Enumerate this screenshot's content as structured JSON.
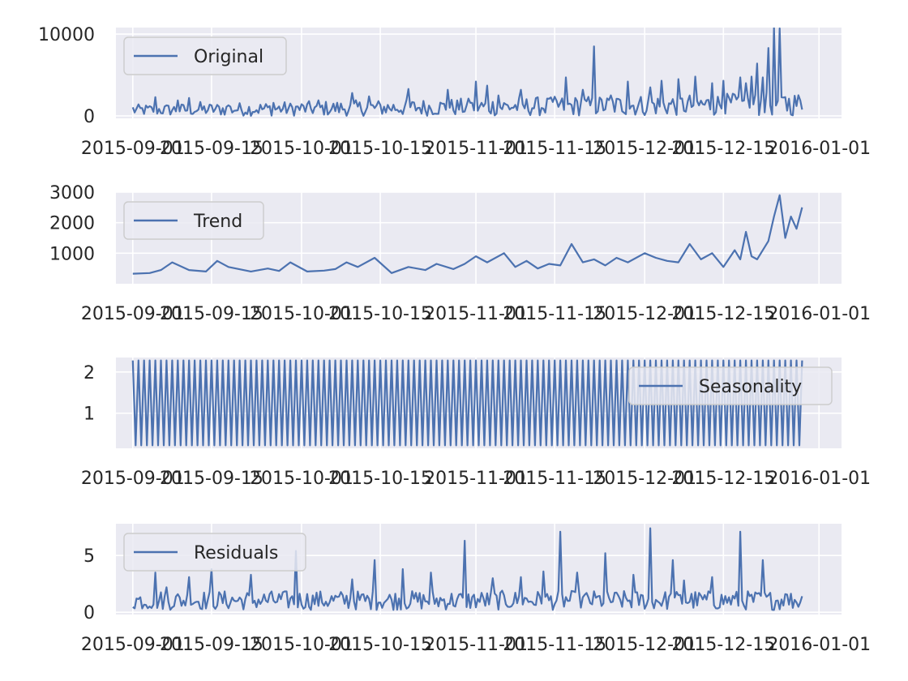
{
  "chart_data": [
    {
      "type": "line",
      "name": "original",
      "title": "",
      "xlabel": "",
      "ylabel": "",
      "xlim": [
        "2015-08-29",
        "2016-01-05"
      ],
      "ylim": [
        -300,
        10800
      ],
      "x_ticks": [
        "2015-09-01",
        "2015-09-15",
        "2015-10-01",
        "2015-10-15",
        "2015-11-01",
        "2015-11-15",
        "2015-12-01",
        "2015-12-15",
        "2016-01-01"
      ],
      "y_ticks": [
        0,
        10000
      ],
      "grid": true,
      "legend": "upper left",
      "x_start": "2015-09-01",
      "x_end": "2015-12-29",
      "series": [
        {
          "name": "Original",
          "color": "#4c72b0",
          "x": [
            "2015-09-01",
            "2015-09-05",
            "2015-09-09",
            "2015-09-11",
            "2015-09-13",
            "2015-09-18",
            "2015-09-26",
            "2015-09-29",
            "2015-10-04",
            "2015-10-10",
            "2015-10-13",
            "2015-10-20",
            "2015-10-27",
            "2015-10-31",
            "2015-11-01",
            "2015-11-03",
            "2015-11-05",
            "2015-11-09",
            "2015-11-14",
            "2015-11-17",
            "2015-11-20",
            "2015-11-22",
            "2015-11-25",
            "2015-11-28",
            "2015-12-02",
            "2015-12-04",
            "2015-12-07",
            "2015-12-10",
            "2015-12-13",
            "2015-12-15",
            "2015-12-17",
            "2015-12-18",
            "2015-12-19",
            "2015-12-20",
            "2015-12-21",
            "2015-12-22",
            "2015-12-23",
            "2015-12-24",
            "2015-12-25",
            "2015-12-26"
          ],
          "values": [
            1050,
            2300,
            1900,
            2200,
            1700,
            1300,
            1600,
            1500,
            1900,
            2800,
            2400,
            3300,
            3200,
            1600,
            4200,
            3700,
            2500,
            3200,
            2100,
            4700,
            3200,
            8500,
            2500,
            4200,
            3500,
            4300,
            4500,
            4800,
            4000,
            4300,
            2600,
            4700,
            4000,
            4800,
            6400,
            4700,
            8300,
            10800,
            10700,
            2300
          ],
          "baseline_range": [
            0,
            1400
          ]
        }
      ]
    },
    {
      "type": "line",
      "name": "trend",
      "title": "",
      "xlabel": "",
      "ylabel": "",
      "xlim": [
        "2015-08-29",
        "2016-01-05"
      ],
      "ylim": [
        0,
        3000
      ],
      "x_ticks": [
        "2015-09-01",
        "2015-09-15",
        "2015-10-01",
        "2015-10-15",
        "2015-11-01",
        "2015-11-15",
        "2015-12-01",
        "2015-12-15",
        "2016-01-01"
      ],
      "y_ticks": [
        1000,
        2000,
        3000
      ],
      "grid": true,
      "legend": "upper left",
      "series": [
        {
          "name": "Trend",
          "color": "#4c72b0",
          "x": [
            "2015-09-01",
            "2015-09-04",
            "2015-09-06",
            "2015-09-08",
            "2015-09-11",
            "2015-09-14",
            "2015-09-16",
            "2015-09-18",
            "2015-09-22",
            "2015-09-25",
            "2015-09-27",
            "2015-09-29",
            "2015-10-02",
            "2015-10-05",
            "2015-10-07",
            "2015-10-09",
            "2015-10-11",
            "2015-10-14",
            "2015-10-17",
            "2015-10-20",
            "2015-10-23",
            "2015-10-25",
            "2015-10-28",
            "2015-10-30",
            "2015-11-01",
            "2015-11-03",
            "2015-11-06",
            "2015-11-08",
            "2015-11-10",
            "2015-11-12",
            "2015-11-14",
            "2015-11-16",
            "2015-11-18",
            "2015-11-20",
            "2015-11-22",
            "2015-11-24",
            "2015-11-26",
            "2015-11-28",
            "2015-12-01",
            "2015-12-03",
            "2015-12-05",
            "2015-12-07",
            "2015-12-09",
            "2015-12-11",
            "2015-12-13",
            "2015-12-15",
            "2015-12-17",
            "2015-12-18",
            "2015-12-19",
            "2015-12-20",
            "2015-12-21",
            "2015-12-22",
            "2015-12-23",
            "2015-12-24",
            "2015-12-25",
            "2015-12-26",
            "2015-12-27",
            "2015-12-28",
            "2015-12-29"
          ],
          "values": [
            330,
            350,
            450,
            700,
            450,
            400,
            750,
            550,
            400,
            500,
            420,
            700,
            400,
            430,
            480,
            700,
            550,
            850,
            350,
            550,
            450,
            650,
            480,
            650,
            900,
            700,
            1000,
            550,
            750,
            500,
            650,
            600,
            1300,
            700,
            800,
            600,
            850,
            700,
            1000,
            850,
            750,
            700,
            1300,
            800,
            1000,
            550,
            1100,
            800,
            1700,
            900,
            800,
            1100,
            1400,
            2200,
            2900,
            1500,
            2200,
            1800,
            2500
          ]
        }
      ]
    },
    {
      "type": "line",
      "name": "seasonality",
      "title": "",
      "xlabel": "",
      "ylabel": "",
      "xlim": [
        "2015-08-29",
        "2016-01-05"
      ],
      "ylim": [
        0.15,
        2.35
      ],
      "x_ticks": [
        "2015-09-01",
        "2015-09-15",
        "2015-10-01",
        "2015-10-15",
        "2015-11-01",
        "2015-11-15",
        "2015-12-01",
        "2015-12-15",
        "2016-01-01"
      ],
      "y_ticks": [
        1,
        2
      ],
      "grid": true,
      "legend": "upper right",
      "series": [
        {
          "name": "Seasonality",
          "color": "#4c72b0",
          "period_days": 1,
          "min": 0.22,
          "max": 2.28,
          "start": "2015-09-01",
          "end": "2015-12-29"
        }
      ]
    },
    {
      "type": "line",
      "name": "residuals",
      "title": "",
      "xlabel": "",
      "ylabel": "",
      "xlim": [
        "2015-08-29",
        "2016-01-05"
      ],
      "ylim": [
        -0.2,
        7.8
      ],
      "x_ticks": [
        "2015-09-01",
        "2015-09-15",
        "2015-10-01",
        "2015-10-15",
        "2015-11-01",
        "2015-11-15",
        "2015-12-01",
        "2015-12-15",
        "2016-01-01"
      ],
      "y_ticks": [
        0,
        5
      ],
      "grid": true,
      "legend": "upper left",
      "series": [
        {
          "name": "Residuals",
          "color": "#4c72b0",
          "x": [
            "2015-09-05",
            "2015-09-07",
            "2015-09-11",
            "2015-09-15",
            "2015-09-22",
            "2015-09-30",
            "2015-10-10",
            "2015-10-14",
            "2015-10-19",
            "2015-10-24",
            "2015-10-30",
            "2015-11-04",
            "2015-11-09",
            "2015-11-13",
            "2015-11-16",
            "2015-11-19",
            "2015-11-24",
            "2015-11-29",
            "2015-12-02",
            "2015-12-06",
            "2015-12-08",
            "2015-12-13",
            "2015-12-18",
            "2015-12-22",
            "2015-12-26"
          ],
          "values": [
            3.5,
            2.2,
            3.1,
            3.8,
            3.3,
            5.4,
            2.9,
            4.6,
            3.8,
            3.5,
            6.3,
            3.0,
            3.1,
            3.6,
            7.1,
            3.5,
            5.2,
            3.3,
            7.4,
            4.6,
            2.8,
            3.1,
            7.1,
            4.6,
            1.6
          ],
          "baseline_range": [
            0.2,
            1.9
          ]
        }
      ]
    }
  ]
}
